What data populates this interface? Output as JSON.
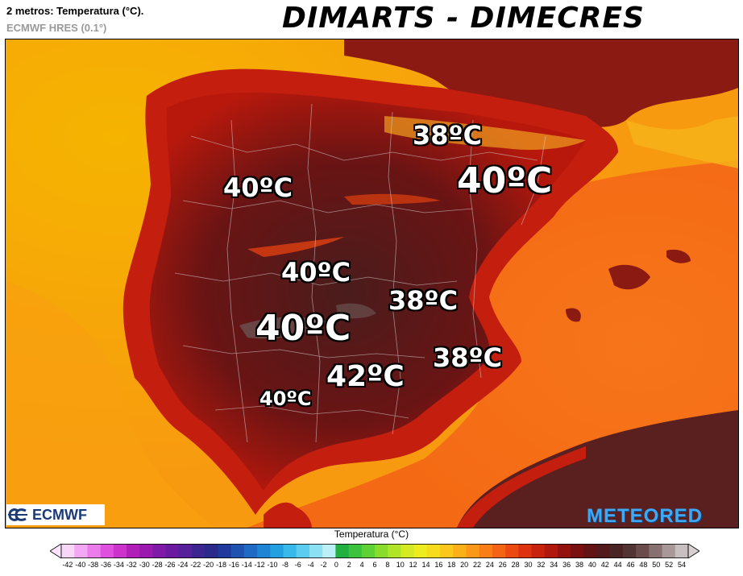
{
  "header": {
    "variable": "2 metros: Temperatura (°C).",
    "model": "ECMWF HRES (0.1°)",
    "banner": "DIMARTS - DIMECRES"
  },
  "map": {
    "labels": [
      {
        "id": "zaragoza-north",
        "text": "38ºC"
      },
      {
        "id": "lleida",
        "text": "40ºC"
      },
      {
        "id": "salamanca",
        "text": "40ºC"
      },
      {
        "id": "madrid",
        "text": "40ºC"
      },
      {
        "id": "albacete",
        "text": "38ºC"
      },
      {
        "id": "ciudad-real",
        "text": "40ºC"
      },
      {
        "id": "murcia",
        "text": "38ºC"
      },
      {
        "id": "jaen",
        "text": "42ºC"
      },
      {
        "id": "sevilla",
        "text": "40ºC"
      }
    ]
  },
  "logos": {
    "ecmwf": "ECMWF",
    "meteored": "METEORED"
  },
  "colorbar": {
    "title": "Temperatura (°C)",
    "ticks": [
      "-42",
      "-40",
      "-38",
      "-36",
      "-34",
      "-32",
      "-30",
      "-28",
      "-26",
      "-24",
      "-22",
      "-20",
      "-18",
      "-16",
      "-14",
      "-12",
      "-10",
      "-8",
      "-6",
      "-4",
      "-2",
      "0",
      "2",
      "4",
      "6",
      "8",
      "10",
      "12",
      "14",
      "16",
      "18",
      "20",
      "22",
      "24",
      "26",
      "28",
      "30",
      "32",
      "34",
      "36",
      "38",
      "40",
      "42",
      "44",
      "46",
      "48",
      "50",
      "52",
      "54"
    ],
    "colors": [
      "#f7d6f7",
      "#f3a8f3",
      "#ec7cec",
      "#e050e0",
      "#cc33cc",
      "#b01fb8",
      "#9a1ab0",
      "#7f19a8",
      "#6a1aa0",
      "#55209a",
      "#3b2590",
      "#2a2a8c",
      "#1f3a9c",
      "#1f52b0",
      "#1f6ac4",
      "#1f84d4",
      "#22a0e0",
      "#39b8ea",
      "#5ccdf0",
      "#8ddff4",
      "#bdeff8",
      "#22b040",
      "#3cc23c",
      "#5ed234",
      "#88dc2c",
      "#b0e426",
      "#d4ea22",
      "#ecec1e",
      "#f6dc1c",
      "#fac81a",
      "#fcb018",
      "#fc9818",
      "#fa7e16",
      "#f46414",
      "#ea4a12",
      "#dc3210",
      "#c8220e",
      "#b0180c",
      "#94120e",
      "#7a1010",
      "#621414",
      "#521a1a",
      "#4a2424",
      "#523434",
      "#6a4c4c",
      "#887070",
      "#a89898",
      "#c8c0c0"
    ]
  }
}
